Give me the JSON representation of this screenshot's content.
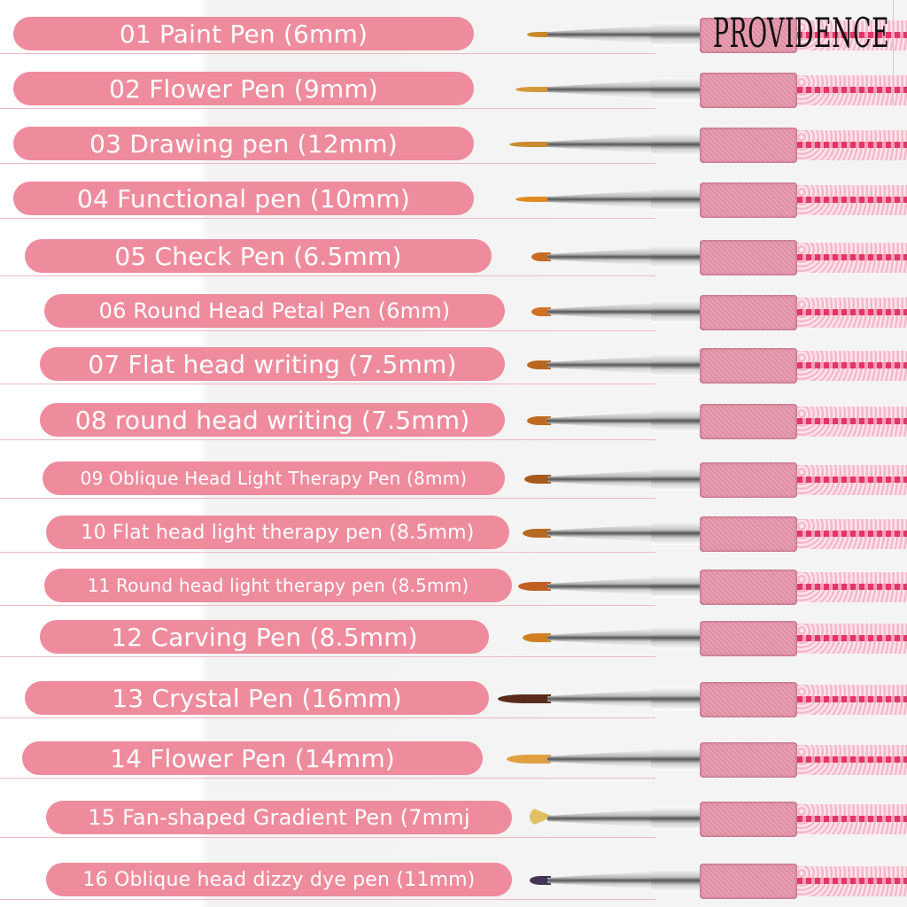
{
  "brand": "PROVIDENCE",
  "colors": {
    "label_pill": "#ee8c9d",
    "label_text": "#ffffff",
    "grip": "#e28fa6",
    "accent_red": "#e4356a"
  },
  "pens": [
    {
      "label": "01 Paint Pen (6mm)"
    },
    {
      "label": "02 Flower Pen (9mm)"
    },
    {
      "label": "03 Drawing pen (12mm)"
    },
    {
      "label": "04 Functional pen (10mm)"
    },
    {
      "label": "05 Check Pen (6.5mm)"
    },
    {
      "label": "06 Round Head Petal Pen (6mm)"
    },
    {
      "label": "07 Flat head writing (7.5mm)"
    },
    {
      "label": "08 round head writing (7.5mm)"
    },
    {
      "label": "09 Oblique Head Light Therapy Pen (8mm)"
    },
    {
      "label": "10 Flat head light therapy pen (8.5mm)"
    },
    {
      "label": "11 Round head light therapy pen (8.5mm)"
    },
    {
      "label": "12 Carving Pen (8.5mm)"
    },
    {
      "label": "13 Crystal Pen (16mm)"
    },
    {
      "label": "14 Flower Pen (14mm)"
    },
    {
      "label": "15 Fan-shaped Gradient Pen (7mmj"
    },
    {
      "label": "16 Oblique head dizzy dye pen (11mm)"
    }
  ]
}
